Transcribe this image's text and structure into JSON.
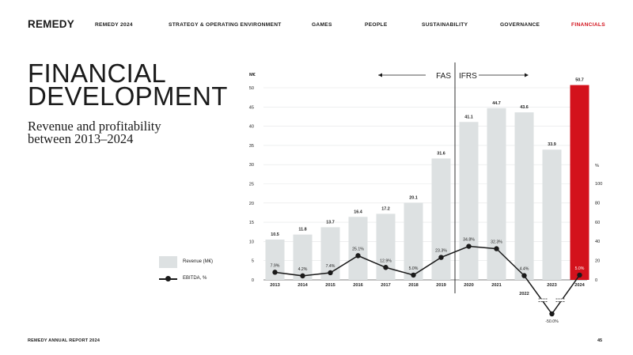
{
  "header": {
    "logo": "REMEDY",
    "nav": [
      {
        "label": "REMEDY 2024",
        "active": false
      },
      {
        "label": "STRATEGY & OPERATING ENVIRONMENT",
        "active": false
      },
      {
        "label": "GAMES",
        "active": false
      },
      {
        "label": "PEOPLE",
        "active": false
      },
      {
        "label": "SUSTAINABILITY",
        "active": false
      },
      {
        "label": "GOVERNANCE",
        "active": false
      },
      {
        "label": "FINANCIALS",
        "active": true
      }
    ]
  },
  "main": {
    "title": "FINANCIAL DEVELOPMENT",
    "subtitle": "Revenue and profitability between 2013–2024"
  },
  "legend": {
    "bar_label": "Revenue (M€)",
    "line_label": "EBITDA, %"
  },
  "footer": {
    "report": "REMEDY ANNUAL REPORT 2024",
    "page": "45"
  },
  "colors": {
    "bar": "#dde1e2",
    "highlight_bar": "#d3121c",
    "line": "#1a1a1a",
    "accent": "#d3121c"
  },
  "chart_data": {
    "type": "bar",
    "categories": [
      "2013",
      "2014",
      "2015",
      "2016",
      "2017",
      "2018",
      "2019",
      "2020",
      "2021",
      "2022",
      "2023",
      "2024"
    ],
    "series": [
      {
        "name": "Revenue (M€)",
        "type": "bar",
        "axis": "left",
        "values": [
          10.5,
          11.8,
          13.7,
          16.4,
          17.2,
          20.1,
          31.6,
          41.1,
          44.7,
          43.6,
          33.9,
          50.7
        ],
        "labels": [
          "10.5",
          "11.8",
          "13.7",
          "16.4",
          "17.2",
          "20.1",
          "31.6",
          "41.1",
          "44.7",
          "43.6",
          "33.9",
          "50.7"
        ],
        "highlight_index": 11
      },
      {
        "name": "EBITDA, %",
        "type": "line",
        "axis": "right",
        "values": [
          7.9,
          4.2,
          7.4,
          25.1,
          12.9,
          5.0,
          23.3,
          34.8,
          32.3,
          4.4,
          -50.0,
          5.0
        ],
        "labels": [
          "7.9%",
          "4.2%",
          "7.4%",
          "25.1%",
          "12.9%",
          "5.0%",
          "23.3%",
          "34.8%",
          "32.3%",
          "4.4%",
          "-50.0%",
          "5.0%"
        ]
      }
    ],
    "ylabel": "M€",
    "ylim": [
      0,
      50
    ],
    "yticks": [
      "0",
      "5",
      "10",
      "15",
      "20",
      "25",
      "30",
      "35",
      "40",
      "45",
      "50"
    ],
    "y2label": "%",
    "y2lim": [
      0,
      100
    ],
    "y2ticks": [
      "0",
      "20",
      "40",
      "60",
      "80",
      "100"
    ],
    "annotations": {
      "left": "FAS",
      "right": "IFRS",
      "divider_after_category": "2019"
    },
    "grid": true
  }
}
